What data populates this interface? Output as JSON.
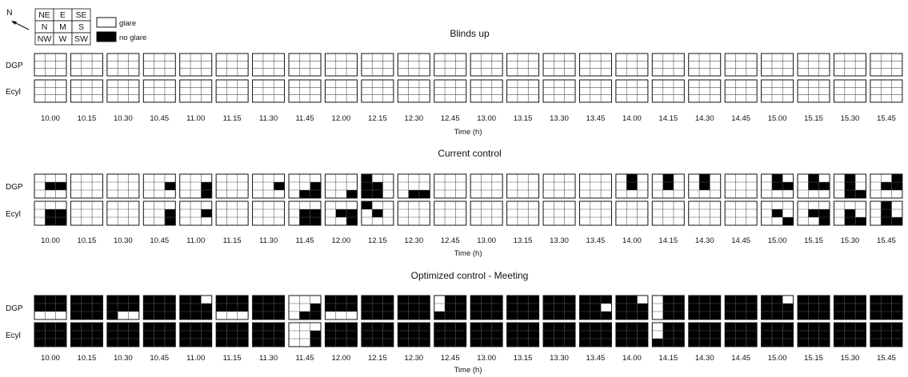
{
  "chart_data": {
    "type": "heatmap",
    "compass": {
      "north_label": "N",
      "grid": [
        [
          "NE",
          "E",
          "SE"
        ],
        [
          "N",
          "M",
          "S"
        ],
        [
          "NW",
          "W",
          "SW"
        ]
      ]
    },
    "legend": [
      {
        "label": "glare",
        "color": "#ffffff"
      },
      {
        "label": "no glare",
        "color": "#000000"
      }
    ],
    "cell_order": [
      "NE",
      "E",
      "SE",
      "N",
      "M",
      "S",
      "NW",
      "W",
      "SW"
    ],
    "times": [
      "10.00",
      "10.15",
      "10.30",
      "10.45",
      "11.00",
      "11.15",
      "11.30",
      "11.45",
      "12.00",
      "12.15",
      "12.30",
      "12.45",
      "13.00",
      "13.15",
      "13.30",
      "13.45",
      "14.00",
      "14.15",
      "14.30",
      "14.45",
      "15.00",
      "15.15",
      "15.30",
      "15.45"
    ],
    "xlabel": "Time (h)",
    "rows": [
      "DGP",
      "Ecyl"
    ],
    "panels": [
      {
        "title": "Blinds up",
        "DGP": [
          "000000000",
          "000000000",
          "000000000",
          "000000000",
          "000000000",
          "000000000",
          "000000000",
          "000000000",
          "000000000",
          "000000000",
          "000000000",
          "000000000",
          "000000000",
          "000000000",
          "000000000",
          "000000000",
          "000000000",
          "000000000",
          "000000000",
          "000000000",
          "000000000",
          "000000000",
          "000000000",
          "000000000"
        ],
        "Ecyl": [
          "000000000",
          "000000000",
          "000000000",
          "000000000",
          "000000000",
          "000000000",
          "000000000",
          "000000000",
          "000000000",
          "000000000",
          "000000000",
          "000000000",
          "000000000",
          "000000000",
          "000000000",
          "000000000",
          "000000000",
          "000000000",
          "000000000",
          "000000000",
          "000000000",
          "000000000",
          "000000000",
          "000000000"
        ]
      },
      {
        "title": "Current control",
        "DGP": [
          "000011000",
          "000000000",
          "000000000",
          "000001000",
          "000001001",
          "000000000",
          "000001000",
          "000001011",
          "000000001",
          "100110110",
          "000000011",
          "000000000",
          "000000000",
          "000000000",
          "000000000",
          "000000000",
          "010010000",
          "010010000",
          "010010000",
          "000000000",
          "010011000",
          "010011000",
          "010010011",
          "001011000"
        ],
        "Ecyl": [
          "000011011",
          "000000000",
          "000000000",
          "000001001",
          "000001000",
          "000000000",
          "000000000",
          "000011011",
          "000011001",
          "100010000",
          "000000000",
          "000000000",
          "000000000",
          "000000000",
          "000000000",
          "000000000",
          "000000000",
          "000000000",
          "000000000",
          "000000000",
          "000010001",
          "000011001",
          "000010011",
          "010010011"
        ],
        "ncols": 3
      },
      {
        "title": "Optimized control - Meeting",
        "DGP": [
          "111111000",
          "111111111",
          "111111100",
          "111111111",
          "110111111",
          "111111000",
          "111111111",
          "000001011",
          "111111000",
          "111111111",
          "111111111",
          "011011111",
          "111111111",
          "111111111",
          "111111111",
          "111110111",
          "110111111",
          "011011011",
          "111111111",
          "111111111",
          "110111111",
          "111111111",
          "111111111",
          "111111111"
        ],
        "Ecyl": [
          "111111111",
          "111111111",
          "111111111",
          "111111111",
          "111111111",
          "111111111",
          "111111111",
          "000001001",
          "111111111",
          "111111111",
          "111111111",
          "111111111",
          "111111111",
          "111111111",
          "111111111",
          "111111111",
          "111111111",
          "011011111",
          "111111111",
          "111111111",
          "111111111",
          "111111111",
          "111111111",
          "111111111"
        ]
      }
    ]
  }
}
